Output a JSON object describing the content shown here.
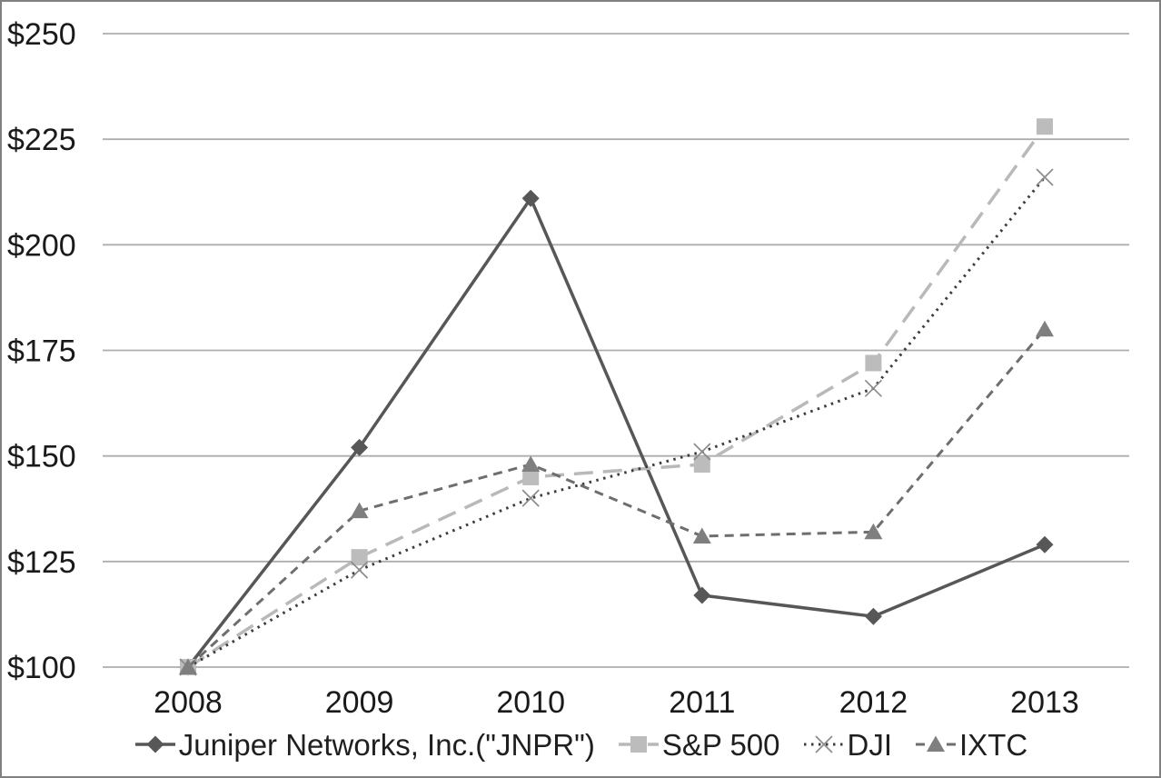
{
  "figure": {
    "background": "#ffffff",
    "border_color": "#808080"
  },
  "chart_data": {
    "type": "line",
    "title": "",
    "xlabel": "",
    "ylabel": "",
    "categories": [
      "2008",
      "2009",
      "2010",
      "2011",
      "2012",
      "2013"
    ],
    "y_ticks": [
      100,
      125,
      150,
      175,
      200,
      225,
      250
    ],
    "y_tick_labels": [
      "$100",
      "$125",
      "$150",
      "$175",
      "$200",
      "$225",
      "$250"
    ],
    "ylim": [
      100,
      250
    ],
    "grid": "horizontal",
    "grid_color": "#aeaeae",
    "axis_font_color": "#1a1a1a",
    "legend_position": "bottom",
    "series": [
      {
        "name": "Juniper Networks, Inc.(\"JNPR\")",
        "marker": "diamond",
        "line_style": "solid",
        "color": "#575757",
        "marker_color": "#575757",
        "values": [
          100,
          152,
          211,
          117,
          112,
          129
        ]
      },
      {
        "name": "S&P 500",
        "marker": "square",
        "line_style": "long-dash",
        "color": "#b9b9b9",
        "marker_color": "#bcbcbc",
        "values": [
          100,
          126,
          145,
          148,
          172,
          228
        ]
      },
      {
        "name": "DJI",
        "marker": "x",
        "line_style": "dotted",
        "color": "#3d3d3d",
        "marker_color": "#8c8c8c",
        "values": [
          100,
          123,
          140,
          151,
          166,
          216
        ]
      },
      {
        "name": "IXTC",
        "marker": "triangle",
        "line_style": "dash",
        "color": "#6e6e6e",
        "marker_color": "#7f7f7f",
        "values": [
          100,
          137,
          148,
          131,
          132,
          180
        ]
      }
    ]
  }
}
